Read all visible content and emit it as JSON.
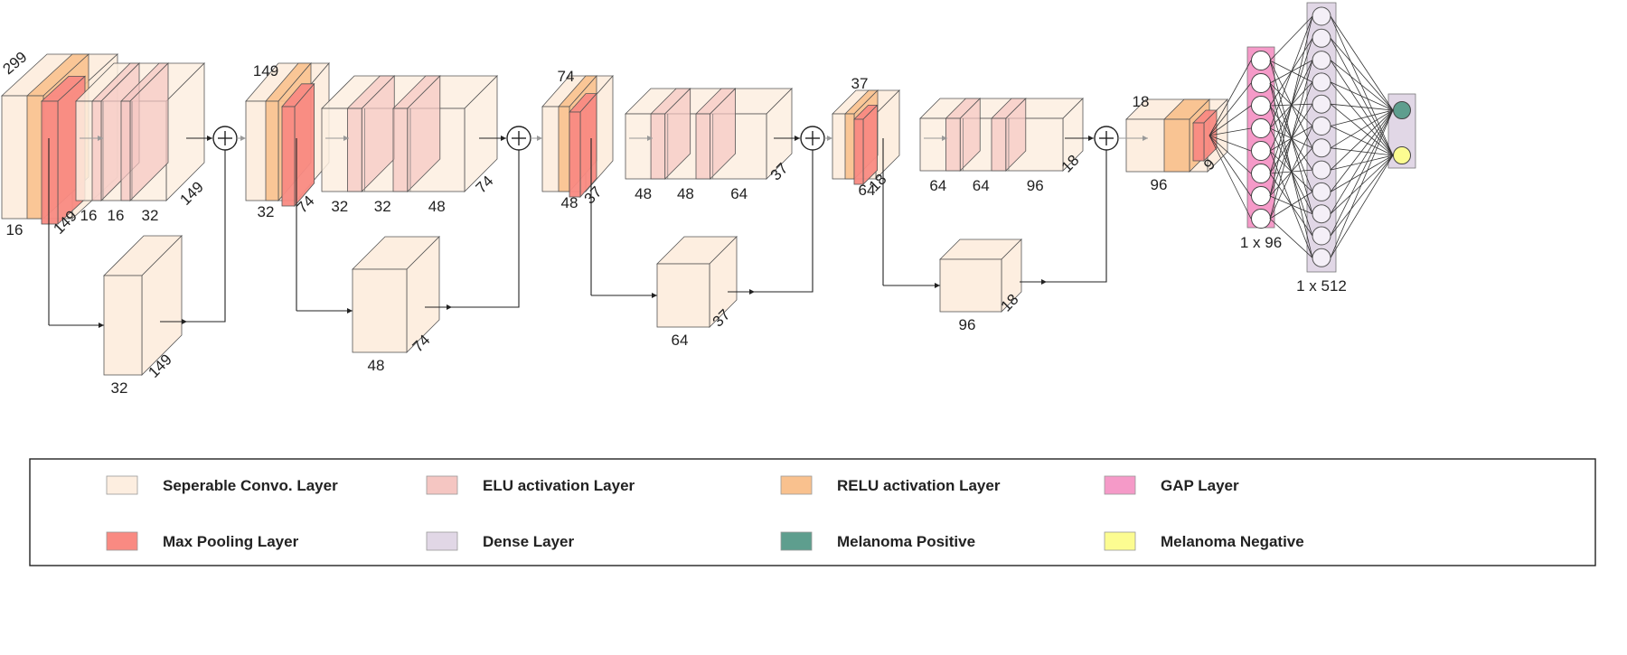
{
  "colors": {
    "conv": "#fdeee0",
    "elu": "#f5c6c2",
    "relu": "#f9c18e",
    "gap": "#f59ac8",
    "pool": "#f98a82",
    "dense": "#e1d7e6",
    "positive": "#5e9e8e",
    "negative": "#fcfc91",
    "edge": "#333333"
  },
  "blocks": [
    {
      "top": "299",
      "bottom": "16",
      "side": "149",
      "convs": [
        "16",
        "16",
        "32"
      ],
      "convSide": "149",
      "residual": {
        "bottom": "32",
        "side": "149"
      }
    },
    {
      "top": "149",
      "bottom": "32",
      "side": "74",
      "convs": [
        "32",
        "32",
        "48"
      ],
      "convSide": "74",
      "residual": {
        "bottom": "48",
        "side": "74"
      }
    },
    {
      "top": "74",
      "bottom": "48",
      "side": "37",
      "convs": [
        "48",
        "48",
        "64"
      ],
      "convSide": "37",
      "residual": {
        "bottom": "64",
        "side": "37"
      }
    },
    {
      "top": "37",
      "bottom": "64",
      "side": "18",
      "convs": [
        "64",
        "64",
        "96"
      ],
      "convSide": "18",
      "residual": {
        "bottom": "96",
        "side": "18"
      }
    }
  ],
  "final": {
    "top": "18",
    "bottom": "96",
    "side": "9"
  },
  "gap_label": "1 x 96",
  "dense_label": "1 x 512",
  "legend": [
    {
      "label": "Seperable Convo. Layer",
      "color": "#fdeee0"
    },
    {
      "label": "ELU activation Layer",
      "color": "#f5c6c2"
    },
    {
      "label": "RELU activation Layer",
      "color": "#f9c18e"
    },
    {
      "label": "GAP Layer",
      "color": "#f59ac8"
    },
    {
      "label": "Max Pooling Layer",
      "color": "#f98a82"
    },
    {
      "label": "Dense Layer",
      "color": "#e1d7e6"
    },
    {
      "label": "Melanoma Positive",
      "color": "#5e9e8e"
    },
    {
      "label": "Melanoma Negative",
      "color": "#fcfc91"
    }
  ]
}
